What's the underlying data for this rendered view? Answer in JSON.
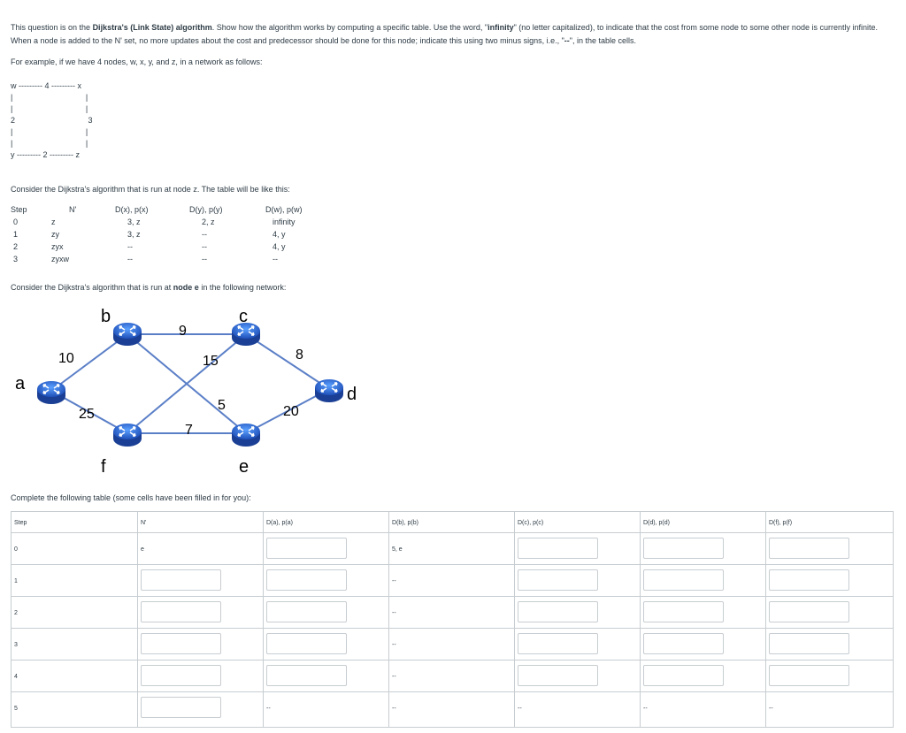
{
  "intro": {
    "part1": "This question is on the ",
    "algo_bold": "Dijkstra's (Link State) algorithm",
    "part2": ". Show how the algorithm works by computing a specific table. Use the word, \"",
    "inf_bold": "infinity",
    "part3": "\" (no letter capitalized), to indicate that the cost from some node to some other node is currently infinite. When a node is added to the N' set, no more updates about the cost and predecessor should be done for this node; indicate this using two minus signs, i.e., \"",
    "dash_bold": "--",
    "part4": "\", in the table cells."
  },
  "example_intro": "For example, if we have 4 nodes, w, x, y, and z, in a network as follows:",
  "ascii_network": "w --------- 4 --------- x\n|                                 |\n|                                 |\n2                                 3\n|                                 |\n|                                 |\ny --------- 2 --------- z",
  "example_caption": "Consider the Dijkstra's algorithm that is run at node z. The table will be like this:",
  "example_table": {
    "headers": [
      "Step",
      "N'",
      "D(x), p(x)",
      "D(y), p(y)",
      "D(w), p(w)"
    ],
    "rows": [
      [
        "0",
        "z",
        "3, z",
        "2, z",
        "infinity"
      ],
      [
        "1",
        "zy",
        "3, z",
        "--",
        "4, y"
      ],
      [
        "2",
        "zyx",
        "--",
        "--",
        "4, y"
      ],
      [
        "3",
        "zyxw",
        "--",
        "--",
        "--"
      ]
    ]
  },
  "network_caption_pre": "Consider the Dijkstra's algorithm that is run at ",
  "network_caption_bold": "node e",
  "network_caption_post": " in the following network:",
  "network": {
    "nodes": [
      "a",
      "b",
      "c",
      "d",
      "e",
      "f"
    ],
    "edges": [
      {
        "from": "a",
        "to": "b",
        "cost": "10"
      },
      {
        "from": "b",
        "to": "c",
        "cost": "9"
      },
      {
        "from": "b",
        "to": "e",
        "cost": "5"
      },
      {
        "from": "c",
        "to": "f",
        "cost": "15"
      },
      {
        "from": "c",
        "to": "d",
        "cost": "8"
      },
      {
        "from": "a",
        "to": "f",
        "cost": "25"
      },
      {
        "from": "f",
        "to": "e",
        "cost": "7"
      },
      {
        "from": "e",
        "to": "d",
        "cost": "20"
      }
    ],
    "router_color": "#3a6fd8",
    "edge_color": "#5b7fc7"
  },
  "complete_caption": "Complete the following table (some cells have been filled in for you):",
  "answer_table": {
    "headers": [
      "Step",
      "N'",
      "D(a), p(a)",
      "D(b), p(b)",
      "D(c), p(c)",
      "D(d), p(d)",
      "D(f), p(f)"
    ],
    "rows": [
      {
        "step": "0",
        "cells": [
          "e",
          "",
          "5, e",
          "",
          "",
          ""
        ]
      },
      {
        "step": "1",
        "cells": [
          "",
          "",
          "--",
          "",
          "",
          ""
        ]
      },
      {
        "step": "2",
        "cells": [
          "",
          "",
          "--",
          "",
          "",
          ""
        ]
      },
      {
        "step": "3",
        "cells": [
          "",
          "",
          "--",
          "",
          "",
          ""
        ]
      },
      {
        "step": "4",
        "cells": [
          "",
          "",
          "--",
          "",
          "",
          ""
        ]
      },
      {
        "step": "5",
        "cells": [
          "",
          "--",
          "--",
          "--",
          "--",
          "--"
        ]
      }
    ]
  }
}
